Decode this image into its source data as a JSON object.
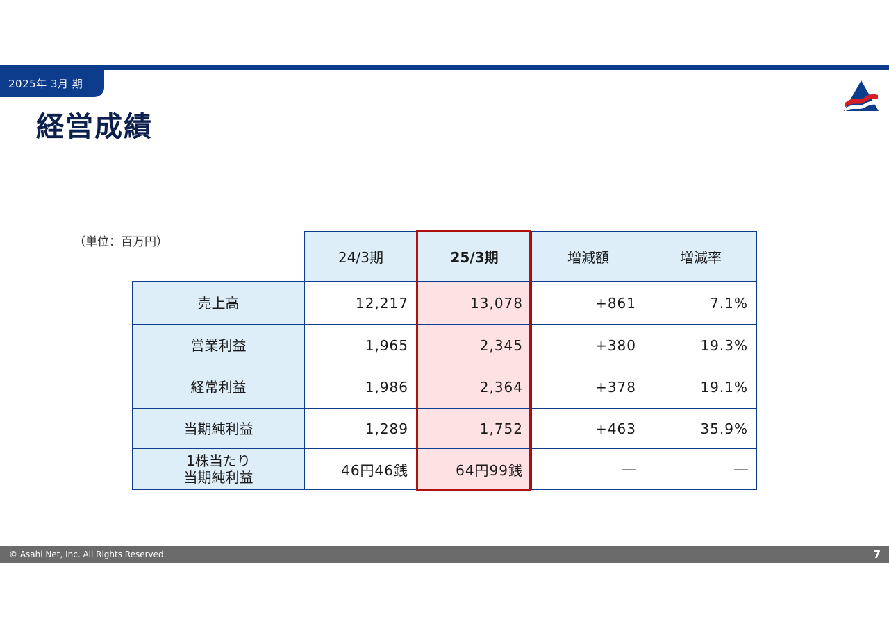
{
  "header": {
    "period": "2025年 3月 期",
    "title": "経営成績",
    "logo_icon": "asahi-net-logo",
    "brand_colors": {
      "navy": "#0e3c8c",
      "red": "#d81f26"
    }
  },
  "table": {
    "unit": "（単位：百万円）",
    "columns": [
      "24/3期",
      "25/3期",
      "増減額",
      "増減率"
    ],
    "highlight_color": "#fde1e3",
    "rows": [
      {
        "label": "売上高",
        "label2": "",
        "prev": "12,217",
        "curr": "13,078",
        "diff": "+861",
        "rate": "7.1%"
      },
      {
        "label": "営業利益",
        "label2": "",
        "prev": "1,965",
        "curr": "2,345",
        "diff": "+380",
        "rate": "19.3%"
      },
      {
        "label": "経常利益",
        "label2": "",
        "prev": "1,986",
        "curr": "2,364",
        "diff": "+378",
        "rate": "19.1%"
      },
      {
        "label": "当期純利益",
        "label2": "",
        "prev": "1,289",
        "curr": "1,752",
        "diff": "+463",
        "rate": "35.9%"
      },
      {
        "label": "1株当たり",
        "label2": "当期純利益",
        "prev": "46円46銭",
        "curr": "64円99銭",
        "diff": "―",
        "rate": "―"
      }
    ]
  },
  "footer": {
    "copyright": "© Asahi Net, Inc. All Rights Reserved.",
    "page_number": "7"
  }
}
